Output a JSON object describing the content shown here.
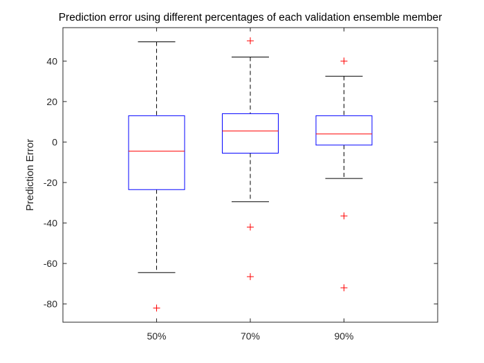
{
  "chart_data": {
    "type": "box",
    "title": "Prediction error using different percentages of each validation ensemble member",
    "xlabel": "",
    "ylabel": "Prediction Error",
    "ylim": [
      -89,
      56.5
    ],
    "yticks": [
      -80,
      -60,
      -40,
      -20,
      0,
      20,
      40
    ],
    "categories": [
      "50%",
      "70%",
      "90%"
    ],
    "boxes": [
      {
        "category": "50%",
        "whisker_low": -64.5,
        "q1": -23.5,
        "median": -4.5,
        "q3": 13,
        "whisker_high": 49.5,
        "outliers": [
          -82
        ]
      },
      {
        "category": "70%",
        "whisker_low": -29.5,
        "q1": -5.5,
        "median": 5.5,
        "q3": 14,
        "whisker_high": 42,
        "outliers": [
          50,
          -42,
          -66.5
        ]
      },
      {
        "category": "90%",
        "whisker_low": -18,
        "q1": -1.5,
        "median": 4,
        "q3": 13,
        "whisker_high": 32.5,
        "outliers": [
          40,
          -36.5,
          -72
        ]
      }
    ],
    "grid": false,
    "legend": "none",
    "colors": {
      "box": "#0000ff",
      "median": "#ff0000",
      "whisker": "#000000",
      "outlier": "#ff0000",
      "axes": "#262626"
    }
  }
}
